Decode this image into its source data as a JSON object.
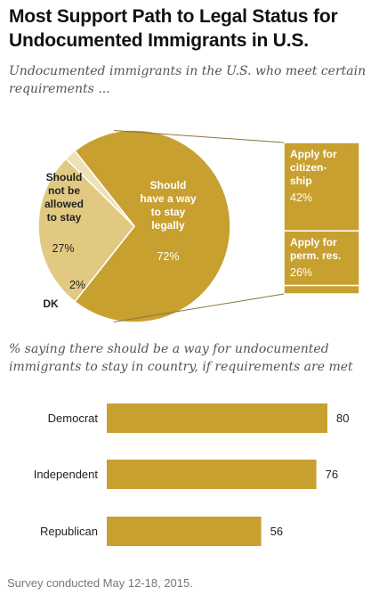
{
  "title": "Most Support Path to Legal Status for Undocumented Immigrants in U.S.",
  "subtitle": "Undocumented immigrants in the U.S. who meet certain requirements ...",
  "note": "Survey conducted May 12-18, 2015.",
  "colors": {
    "main": "#c8a030",
    "light": "#e2c982",
    "lighter": "#efe0b8",
    "line": "#8a7440"
  },
  "chart_data": [
    {
      "type": "pie",
      "slices": [
        {
          "label": "Should have a way to stay legally",
          "label_lines": [
            "Should",
            "have a way",
            "to stay",
            "legally"
          ],
          "value": 72,
          "value_label": "72%",
          "color": "#c8a030"
        },
        {
          "label": "Should not be allowed to stay",
          "label_lines": [
            "Should",
            "not be",
            "allowed",
            "to stay"
          ],
          "value": 27,
          "value_label": "27%",
          "color": "#e2c982"
        },
        {
          "label": "DK",
          "label_lines": [
            "DK"
          ],
          "value": 2,
          "value_label": "2%",
          "color": "#efe0b8"
        }
      ],
      "breakdown": {
        "of": "Should have a way to stay legally",
        "segments": [
          {
            "label_lines": [
              "Apply for",
              "citizen-",
              "ship"
            ],
            "value": 42,
            "value_label": "42%"
          },
          {
            "label_lines": [
              "Apply for",
              "perm. res."
            ],
            "value": 26,
            "value_label": "26%"
          },
          {
            "label_lines": [],
            "value": 4,
            "value_label": ""
          }
        ]
      }
    },
    {
      "type": "bar",
      "orientation": "horizontal",
      "subtitle": "% saying there should be a way for undocumented immigrants to stay in country, if requirements are met",
      "categories": [
        "Democrat",
        "Independent",
        "Republican"
      ],
      "values": [
        80,
        76,
        56
      ],
      "value_labels": [
        "80",
        "76",
        "56"
      ],
      "color": "#c8a030"
    }
  ]
}
